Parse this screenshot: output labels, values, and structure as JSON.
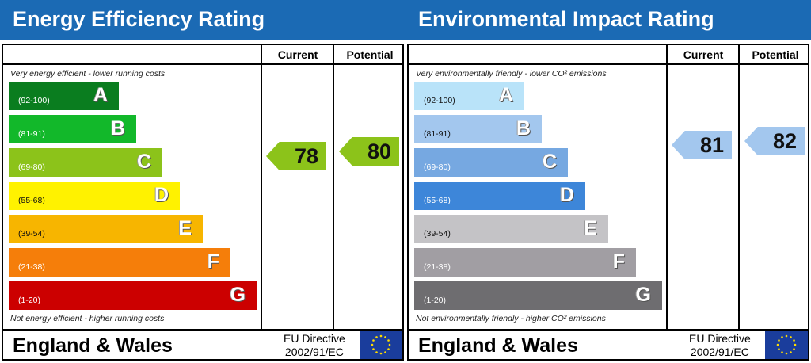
{
  "panels": [
    {
      "title": "Energy Efficiency Rating",
      "current_label": "Current",
      "potential_label": "Potential",
      "top_note": "Very energy efficient - lower running costs",
      "bottom_note": "Not energy efficient - higher running costs",
      "bands": [
        {
          "letter": "A",
          "range": "(92-100)",
          "color": "#0a7d1f"
        },
        {
          "letter": "B",
          "range": "(81-91)",
          "color": "#12b82a"
        },
        {
          "letter": "C",
          "range": "(69-80)",
          "color": "#8cc31a"
        },
        {
          "letter": "D",
          "range": "(55-68)",
          "color": "#fff200"
        },
        {
          "letter": "E",
          "range": "(39-54)",
          "color": "#f7b500"
        },
        {
          "letter": "F",
          "range": "(21-38)",
          "color": "#f57e0a"
        },
        {
          "letter": "G",
          "range": "(1-20)",
          "color": "#cc0000"
        }
      ],
      "current": {
        "value": "78",
        "color": "#8cc31a"
      },
      "potential": {
        "value": "80",
        "color": "#8cc31a"
      },
      "footer": {
        "region": "England & Wales",
        "directive_line1": "EU Directive",
        "directive_line2": "2002/91/EC"
      }
    },
    {
      "title": "Environmental Impact Rating",
      "current_label": "Current",
      "potential_label": "Potential",
      "top_note": "Very environmentally friendly - lower CO² emissions",
      "bottom_note": "Not environmentally friendly - higher CO² emissions",
      "bands": [
        {
          "letter": "A",
          "range": "(92-100)",
          "color": "#b9e3f9"
        },
        {
          "letter": "B",
          "range": "(81-91)",
          "color": "#a3c7ee"
        },
        {
          "letter": "C",
          "range": "(69-80)",
          "color": "#76a8e1"
        },
        {
          "letter": "D",
          "range": "(55-68)",
          "color": "#3d86d9"
        },
        {
          "letter": "E",
          "range": "(39-54)",
          "color": "#c4c3c6"
        },
        {
          "letter": "F",
          "range": "(21-38)",
          "color": "#a19ea3"
        },
        {
          "letter": "G",
          "range": "(1-20)",
          "color": "#6e6d70"
        }
      ],
      "current": {
        "value": "81",
        "color": "#a3c7ee"
      },
      "potential": {
        "value": "82",
        "color": "#a3c7ee"
      },
      "footer": {
        "region": "England & Wales",
        "directive_line1": "EU Directive",
        "directive_line2": "2002/91/EC"
      }
    }
  ]
}
